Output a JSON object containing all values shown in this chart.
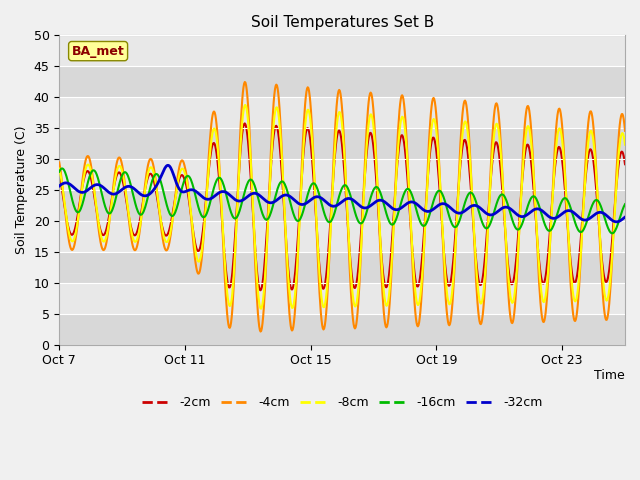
{
  "title": "Soil Temperatures Set B",
  "ylabel": "Soil Temperature (C)",
  "xlabel": "Time",
  "annotation": "BA_met",
  "ylim": [
    0,
    50
  ],
  "xtick_labels": [
    "Oct 7",
    "Oct 11",
    "Oct 15",
    "Oct 19",
    "Oct 23"
  ],
  "xtick_positions": [
    0,
    4,
    8,
    12,
    16
  ],
  "total_days": 18,
  "legend_labels": [
    "-2cm",
    "-4cm",
    "-8cm",
    "-16cm",
    "-32cm"
  ],
  "line_colors": [
    "#cc0000",
    "#ff8800",
    "#ffff00",
    "#00bb00",
    "#0000cc"
  ],
  "line_widths": [
    1.5,
    1.5,
    1.5,
    1.5,
    2.0
  ],
  "fig_bg_color": "#f0f0f0",
  "plot_bg_color": "#e0e0e0",
  "grid_color": "#ffffff",
  "yticks": [
    0,
    5,
    10,
    15,
    20,
    25,
    30,
    35,
    40,
    45,
    50
  ]
}
